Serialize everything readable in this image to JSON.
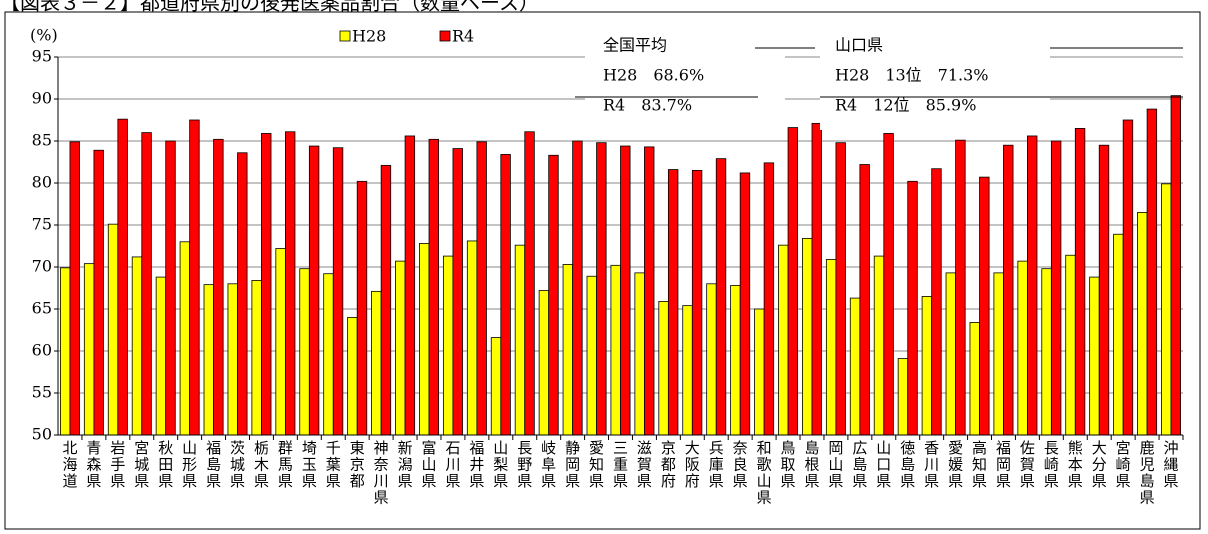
{
  "chart_data": {
    "type": "bar",
    "title": "【図表３－２】都道府県別の後発医薬品割合（数量ベース）",
    "y_label": "(%)",
    "categories": [
      "北海道",
      "青森県",
      "岩手県",
      "宮城県",
      "秋田県",
      "山形県",
      "福島県",
      "茨城県",
      "栃木県",
      "群馬県",
      "埼玉県",
      "千葉県",
      "東京都",
      "神奈川県",
      "新潟県",
      "富山県",
      "石川県",
      "福井県",
      "山梨県",
      "長野県",
      "岐阜県",
      "静岡県",
      "愛知県",
      "三重県",
      "滋賀県",
      "京都府",
      "大阪府",
      "兵庫県",
      "奈良県",
      "和歌山県",
      "鳥取県",
      "島根県",
      "岡山県",
      "広島県",
      "山口県",
      "徳島県",
      "香川県",
      "愛媛県",
      "高知県",
      "福岡県",
      "佐賀県",
      "長崎県",
      "熊本県",
      "大分県",
      "宮崎県",
      "鹿児島県",
      "沖縄県"
    ],
    "series": [
      {
        "name": "H28",
        "color": "#ffff00",
        "values": [
          69.9,
          70.4,
          75.1,
          71.2,
          68.8,
          73.0,
          67.9,
          68.0,
          68.4,
          72.2,
          69.8,
          69.2,
          64.0,
          67.1,
          70.7,
          72.8,
          71.3,
          73.1,
          61.6,
          72.6,
          67.2,
          70.3,
          68.9,
          70.2,
          69.3,
          65.9,
          65.4,
          68.0,
          67.8,
          65.0,
          72.6,
          73.4,
          70.9,
          66.3,
          71.3,
          59.1,
          66.5,
          69.3,
          63.4,
          69.3,
          70.7,
          69.8,
          71.4,
          68.8,
          73.9,
          76.5,
          79.9
        ]
      },
      {
        "name": "R4",
        "color": "#ff0000",
        "values": [
          84.9,
          83.9,
          87.6,
          86.0,
          85.0,
          87.5,
          85.2,
          83.6,
          85.9,
          86.1,
          84.4,
          84.2,
          80.2,
          82.1,
          85.6,
          85.2,
          84.1,
          84.9,
          83.4,
          86.1,
          83.3,
          85.0,
          84.8,
          84.4,
          84.3,
          81.6,
          81.5,
          82.9,
          81.2,
          82.4,
          86.6,
          87.1,
          84.8,
          82.2,
          85.9,
          80.2,
          81.7,
          85.1,
          80.7,
          84.5,
          85.6,
          85.0,
          86.5,
          84.5,
          87.5,
          88.8,
          90.4
        ]
      }
    ],
    "ylim": [
      50,
      95
    ],
    "yticks": [
      50,
      55,
      60,
      65,
      70,
      75,
      80,
      85,
      90,
      95
    ],
    "grid": true,
    "annotations": {
      "national": {
        "heading": "全国平均",
        "h28": "H28　68.6%",
        "r4": "R4　83.7%"
      },
      "yamaguchi": {
        "heading": "山口県",
        "h28": "H28　13位　71.3%",
        "r4": "R4　12位　85.9%"
      }
    }
  }
}
